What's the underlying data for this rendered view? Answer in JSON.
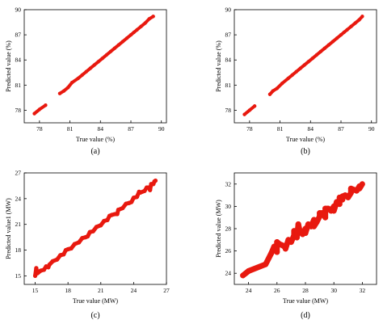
{
  "colors": {
    "points": "#e8190f",
    "axes": "#000000",
    "background": "#ffffff"
  },
  "chart_data": [
    {
      "type": "scatter",
      "panel_label": "(a)",
      "xlabel": "True value (%)",
      "ylabel": "Predicted value (%)",
      "xlim": [
        76.5,
        90.5
      ],
      "ylim": [
        76.5,
        90
      ],
      "xticks": [
        "78",
        "81",
        "84",
        "87",
        "90"
      ],
      "yticks": [
        "78",
        "81",
        "84",
        "87",
        "90"
      ],
      "grid": false,
      "legend": "none",
      "x": [
        77.5,
        78.0,
        78.6,
        80.0,
        80.4,
        80.8,
        81.2,
        81.8,
        82.2,
        82.6,
        83.0,
        83.4,
        83.8,
        84.2,
        84.6,
        85.0,
        85.4,
        85.8,
        86.2,
        86.6,
        87.0,
        87.3,
        87.6,
        88.0,
        88.4,
        88.8,
        89.2
      ],
      "y": [
        77.6,
        78.1,
        78.6,
        80.0,
        80.3,
        80.7,
        81.3,
        81.8,
        82.2,
        82.6,
        83.0,
        83.4,
        83.8,
        84.2,
        84.6,
        85.0,
        85.4,
        85.8,
        86.2,
        86.6,
        87.0,
        87.3,
        87.6,
        88.0,
        88.4,
        88.9,
        89.2
      ]
    },
    {
      "type": "scatter",
      "panel_label": "(b)",
      "xlabel": "True value (%)",
      "ylabel": "Predicted value (%)",
      "xlim": [
        76.5,
        90.5
      ],
      "ylim": [
        76.5,
        90
      ],
      "xticks": [
        "78",
        "81",
        "84",
        "87",
        "90"
      ],
      "yticks": [
        "78",
        "81",
        "84",
        "87",
        "90"
      ],
      "grid": false,
      "legend": "none",
      "x": [
        77.5,
        78.0,
        78.5,
        80.0,
        80.3,
        80.7,
        81.2,
        81.8,
        82.2,
        82.6,
        83.0,
        83.4,
        83.8,
        84.2,
        84.6,
        85.0,
        85.4,
        85.8,
        86.2,
        86.6,
        87.0,
        87.3,
        87.6,
        88.0,
        88.4,
        88.8,
        89.1
      ],
      "y": [
        77.5,
        78.0,
        78.5,
        79.9,
        80.3,
        80.6,
        81.2,
        81.8,
        82.2,
        82.6,
        83.0,
        83.4,
        83.8,
        84.2,
        84.6,
        85.0,
        85.4,
        85.8,
        86.2,
        86.6,
        87.0,
        87.3,
        87.6,
        88.0,
        88.4,
        88.8,
        89.2
      ]
    },
    {
      "type": "scatter",
      "panel_label": "(c)",
      "xlabel": "True value (MW)",
      "ylabel": "Predicted value1 (MW)",
      "xlim": [
        14,
        27
      ],
      "ylim": [
        14,
        27
      ],
      "xticks": [
        "15",
        "18",
        "21",
        "24",
        "27"
      ],
      "yticks": [
        "15",
        "18",
        "21",
        "24",
        "27"
      ],
      "grid": false,
      "legend": "none",
      "x": [
        15.0,
        15.1,
        15.3,
        15.5,
        15.8,
        16.0,
        16.3,
        16.6,
        17.0,
        17.3,
        17.6,
        18.0,
        18.3,
        18.6,
        19.0,
        19.3,
        19.6,
        20.0,
        20.3,
        20.6,
        21.0,
        21.3,
        21.6,
        22.0,
        22.3,
        22.6,
        23.0,
        23.3,
        23.6,
        24.0,
        24.3,
        24.6,
        25.0,
        25.2,
        25.4,
        25.6,
        25.8,
        26.0,
        15.2,
        16.2,
        17.8,
        19.8,
        21.8,
        23.8,
        25.5,
        22.5,
        24.5,
        25.9
      ],
      "y": [
        15.0,
        15.9,
        15.4,
        15.6,
        15.7,
        16.1,
        16.3,
        16.7,
        16.9,
        17.4,
        17.5,
        18.1,
        18.2,
        18.7,
        18.9,
        19.4,
        19.5,
        20.1,
        20.2,
        20.7,
        20.9,
        21.4,
        21.5,
        22.1,
        22.2,
        22.7,
        22.9,
        23.4,
        23.5,
        24.1,
        24.2,
        24.7,
        24.9,
        25.3,
        25.3,
        25.7,
        25.7,
        26.1,
        15.3,
        16.0,
        18.0,
        19.6,
        22.0,
        23.6,
        25.0,
        22.2,
        24.8,
        26.0
      ]
    },
    {
      "type": "scatter",
      "panel_label": "(d)",
      "xlabel": "True value (MW)",
      "ylabel": "Predicted value (MW)",
      "xlim": [
        23,
        33
      ],
      "ylim": [
        23,
        33
      ],
      "xticks": [
        "24",
        "26",
        "28",
        "30",
        "32"
      ],
      "yticks": [
        "24",
        "26",
        "28",
        "30",
        "32"
      ],
      "grid": false,
      "legend": "none",
      "x": [
        23.6,
        23.8,
        24.0,
        25.2,
        25.6,
        25.8,
        26.0,
        26.2,
        26.4,
        26.6,
        26.8,
        27.0,
        27.2,
        27.4,
        27.6,
        27.8,
        28.0,
        28.2,
        28.4,
        28.6,
        28.8,
        29.0,
        29.2,
        29.4,
        29.6,
        29.8,
        30.0,
        30.2,
        30.4,
        30.6,
        30.8,
        31.0,
        31.2,
        31.4,
        31.6,
        31.8,
        32.0,
        26.0,
        26.6,
        27.2,
        28.0,
        28.6,
        29.4,
        30.0,
        30.6,
        31.2,
        31.8,
        27.5,
        29.0,
        30.4
      ],
      "y": [
        23.8,
        24.0,
        24.2,
        24.8,
        25.8,
        26.4,
        25.9,
        26.6,
        26.5,
        26.3,
        27.0,
        26.8,
        27.4,
        27.2,
        27.8,
        27.5,
        28.0,
        28.4,
        28.2,
        28.8,
        28.6,
        29.1,
        29.4,
        29.0,
        29.8,
        29.6,
        30.0,
        30.4,
        30.2,
        30.6,
        31.0,
        30.8,
        31.2,
        31.5,
        31.4,
        31.8,
        32.0,
        26.8,
        26.2,
        27.8,
        27.6,
        28.2,
        29.8,
        29.6,
        30.9,
        31.6,
        31.6,
        28.4,
        29.4,
        30.8
      ]
    }
  ]
}
